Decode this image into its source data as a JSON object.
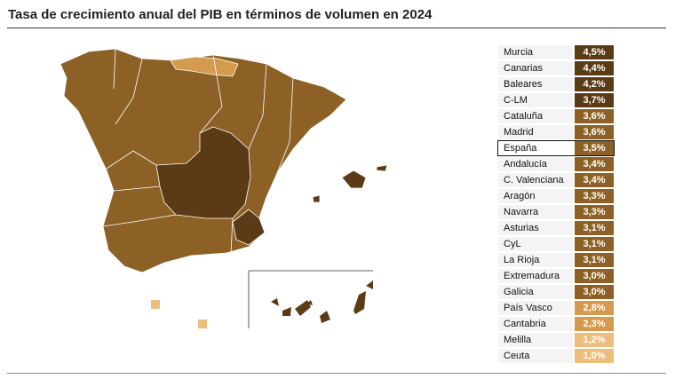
{
  "header": {
    "title": "Tasa de crecimiento anual del PIB en términos de volumen en 2024"
  },
  "table": {
    "rows": [
      {
        "region": "Murcia",
        "value": "4,5%",
        "color": "#5b3b16"
      },
      {
        "region": "Canarias",
        "value": "4,4%",
        "color": "#5b3b16"
      },
      {
        "region": "Baleares",
        "value": "4,2%",
        "color": "#5b3b16"
      },
      {
        "region": "C-LM",
        "value": "3,7%",
        "color": "#5b3b16"
      },
      {
        "region": "Cataluña",
        "value": "3,6%",
        "color": "#8d6126"
      },
      {
        "region": "Madrid",
        "value": "3,6%",
        "color": "#8d6126"
      },
      {
        "region": "España",
        "value": "3,5%",
        "color": "#8d6126",
        "outlined": true
      },
      {
        "region": "Andalucía",
        "value": "3,4%",
        "color": "#8d6126"
      },
      {
        "region": "C. Valenciana",
        "value": "3,4%",
        "color": "#8d6126"
      },
      {
        "region": "Aragón",
        "value": "3,3%",
        "color": "#8d6126"
      },
      {
        "region": "Navarra",
        "value": "3,3%",
        "color": "#8d6126"
      },
      {
        "region": "Asturias",
        "value": "3,1%",
        "color": "#8d6126"
      },
      {
        "region": "CyL",
        "value": "3,1%",
        "color": "#8d6126"
      },
      {
        "region": "La Rioja",
        "value": "3,1%",
        "color": "#8d6126"
      },
      {
        "region": "Extremadura",
        "value": "3,0%",
        "color": "#8d6126"
      },
      {
        "region": "Galicia",
        "value": "3,0%",
        "color": "#8d6126"
      },
      {
        "region": "País Vasco",
        "value": "2,8%",
        "color": "#d49a4d"
      },
      {
        "region": "Cantabria",
        "value": "2,3%",
        "color": "#d49a4d"
      },
      {
        "region": "Melilla",
        "value": "1,2%",
        "color": "#ecbd7c"
      },
      {
        "region": "Ceuta",
        "value": "1,0%",
        "color": "#ecbd7c"
      }
    ]
  }
}
